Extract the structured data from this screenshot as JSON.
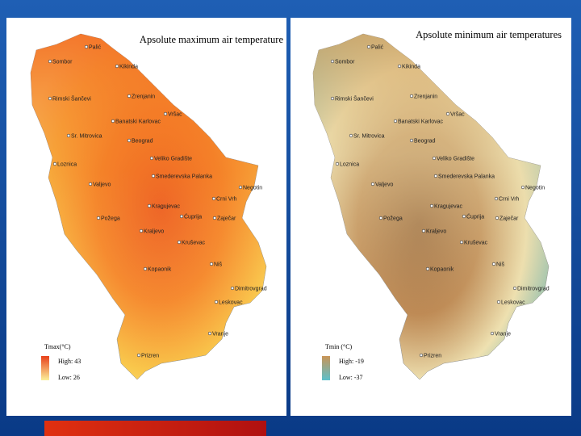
{
  "maps": [
    {
      "title": "Apsolute maximum air temperature",
      "legend": {
        "title": "Tmax(°C)",
        "high": "High: 43",
        "low": "Low: 26"
      }
    },
    {
      "title": "Apsolute minimum air temperatures",
      "legend": {
        "title": "Tmin (°C)",
        "high": "High: -19",
        "low": "Low: -37"
      }
    }
  ],
  "cities": [
    "Palić",
    "Sombor",
    "Kikinda",
    "Zrenjanin",
    "Rimski Šančevi",
    "Vršac",
    "Banatski Karlovac",
    "Sr. Mitrovica",
    "Beograd",
    "Veliko Gradište",
    "Loznica",
    "Smederevska Palanka",
    "Valjevo",
    "Negotin",
    "Crni Vrh",
    "Kragujevac",
    "Zaječar",
    "Ćuprija",
    "Požega",
    "Kraljevo",
    "Kruševac",
    "Niš",
    "Kopaonik",
    "Dimitrovgrad",
    "Leskovac",
    "Vranje",
    "Prizren"
  ]
}
